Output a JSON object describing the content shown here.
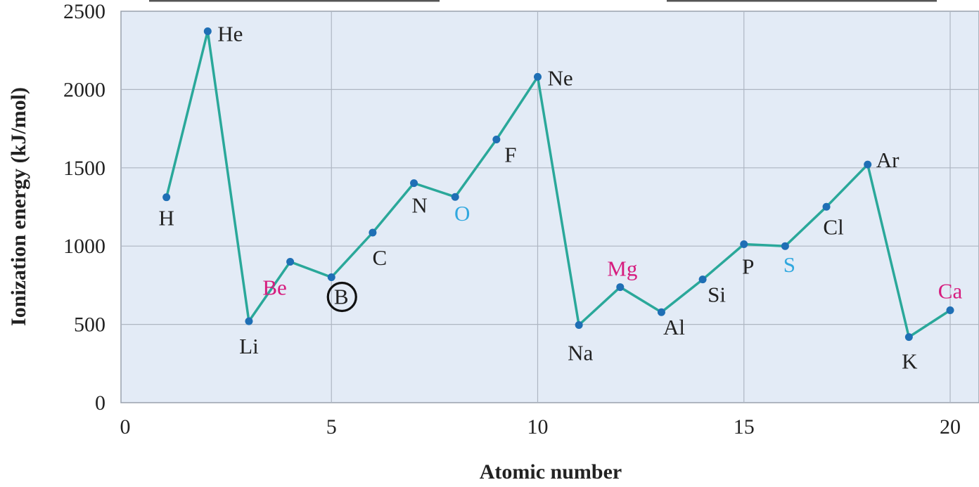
{
  "chart_data": {
    "type": "line",
    "xlabel": "Atomic number",
    "ylabel": "Ionization energy (kJ/mol)",
    "xlim": [
      0,
      20.7
    ],
    "ylim": [
      0,
      2500
    ],
    "x_ticks": [
      0,
      5,
      10,
      15,
      20
    ],
    "y_ticks": [
      0,
      500,
      1000,
      1500,
      2000,
      2500
    ],
    "grid": true,
    "series_color": "#2aa89a",
    "marker_color": "#1f6fb5",
    "plot_background": "#e3ebf6",
    "label_colors": {
      "default": "#222222",
      "group2": "#d61c7e",
      "group16": "#31a8df"
    },
    "points": [
      {
        "x": 1,
        "y": 1312,
        "label": "H",
        "color": "default"
      },
      {
        "x": 2,
        "y": 2372,
        "label": "He",
        "color": "default"
      },
      {
        "x": 3,
        "y": 520,
        "label": "Li",
        "color": "default"
      },
      {
        "x": 4,
        "y": 900,
        "label": "Be",
        "color": "group2"
      },
      {
        "x": 5,
        "y": 801,
        "label": "B",
        "color": "default",
        "circled": true
      },
      {
        "x": 6,
        "y": 1086,
        "label": "C",
        "color": "default"
      },
      {
        "x": 7,
        "y": 1402,
        "label": "N",
        "color": "default"
      },
      {
        "x": 8,
        "y": 1314,
        "label": "O",
        "color": "group16"
      },
      {
        "x": 9,
        "y": 1681,
        "label": "F",
        "color": "default"
      },
      {
        "x": 10,
        "y": 2081,
        "label": "Ne",
        "color": "default"
      },
      {
        "x": 11,
        "y": 496,
        "label": "Na",
        "color": "default"
      },
      {
        "x": 12,
        "y": 738,
        "label": "Mg",
        "color": "group2"
      },
      {
        "x": 13,
        "y": 578,
        "label": "Al",
        "color": "default"
      },
      {
        "x": 14,
        "y": 787,
        "label": "Si",
        "color": "default"
      },
      {
        "x": 15,
        "y": 1012,
        "label": "P",
        "color": "default"
      },
      {
        "x": 16,
        "y": 1000,
        "label": "S",
        "color": "group16"
      },
      {
        "x": 17,
        "y": 1251,
        "label": "Cl",
        "color": "default"
      },
      {
        "x": 18,
        "y": 1521,
        "label": "Ar",
        "color": "default"
      },
      {
        "x": 19,
        "y": 419,
        "label": "K",
        "color": "default"
      },
      {
        "x": 20,
        "y": 590,
        "label": "Ca",
        "color": "group2"
      }
    ]
  }
}
